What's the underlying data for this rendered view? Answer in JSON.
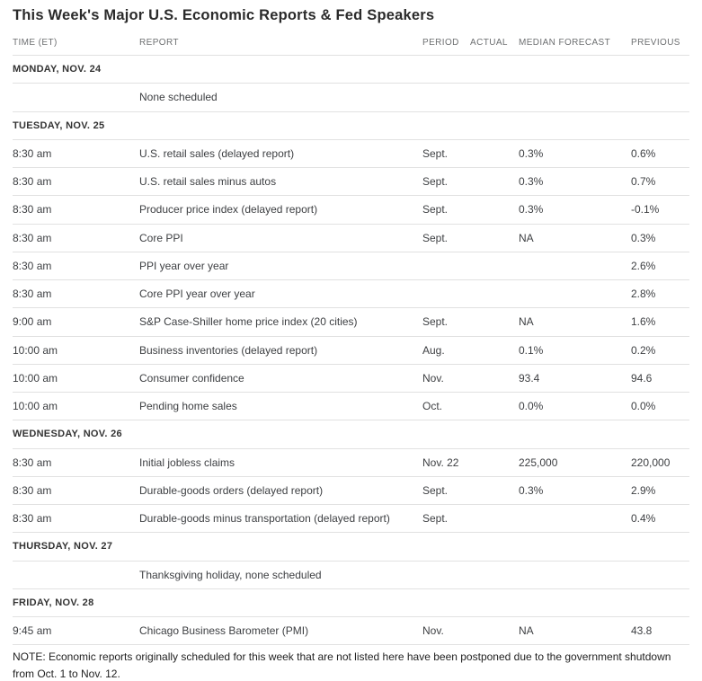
{
  "page": {
    "title": "This Week's Major U.S. Economic Reports & Fed Speakers",
    "note": "NOTE: Economic reports originally scheduled for this week that are not listed here have been postponed due to the government shutdown from Oct. 1 to Nov. 12."
  },
  "colors": {
    "background": "#ffffff",
    "title_text": "#2b2b2b",
    "column_header_text": "#6d6f71",
    "section_header_text": "#333333",
    "body_text": "#3d3f42",
    "divider": "#e1e1e1"
  },
  "table": {
    "columns": [
      "TIME (ET)",
      "REPORT",
      "PERIOD",
      "ACTUAL",
      "MEDIAN FORECAST",
      "PREVIOUS"
    ],
    "rows": [
      {
        "type": "section",
        "label": "MONDAY, NOV. 24"
      },
      {
        "type": "data",
        "cells": [
          "",
          "None scheduled",
          "",
          "",
          "",
          ""
        ]
      },
      {
        "type": "section",
        "label": "TUESDAY, NOV. 25"
      },
      {
        "type": "data",
        "cells": [
          "8:30 am",
          "U.S. retail sales (delayed report)",
          "Sept.",
          "",
          "0.3%",
          "0.6%"
        ]
      },
      {
        "type": "data",
        "cells": [
          "8:30 am",
          "U.S. retail sales minus autos",
          "Sept.",
          "",
          "0.3%",
          "0.7%"
        ]
      },
      {
        "type": "data",
        "cells": [
          "8:30 am",
          "Producer price index (delayed report)",
          "Sept.",
          "",
          "0.3%",
          "-0.1%"
        ]
      },
      {
        "type": "data",
        "cells": [
          "8:30 am",
          "Core PPI",
          "Sept.",
          "",
          "NA",
          "0.3%"
        ]
      },
      {
        "type": "data",
        "cells": [
          "8:30 am",
          "PPI year over year",
          "",
          "",
          "",
          "2.6%"
        ]
      },
      {
        "type": "data",
        "cells": [
          "8:30 am",
          "Core PPI year over year",
          "",
          "",
          "",
          "2.8%"
        ]
      },
      {
        "type": "data",
        "cells": [
          "9:00 am",
          "S&P Case-Shiller home price index (20 cities)",
          "Sept.",
          "",
          "NA",
          "1.6%"
        ]
      },
      {
        "type": "data",
        "cells": [
          "10:00 am",
          "Business inventories (delayed report)",
          "Aug.",
          "",
          "0.1%",
          "0.2%"
        ]
      },
      {
        "type": "data",
        "cells": [
          "10:00 am",
          "Consumer confidence",
          "Nov.",
          "",
          "93.4",
          "94.6"
        ]
      },
      {
        "type": "data",
        "cells": [
          "10:00 am",
          "Pending home sales",
          "Oct.",
          "",
          "0.0%",
          "0.0%"
        ]
      },
      {
        "type": "section",
        "label": "WEDNESDAY, NOV. 26"
      },
      {
        "type": "data",
        "cells": [
          "8:30 am",
          "Initial jobless claims",
          "Nov. 22",
          "",
          "225,000",
          "220,000"
        ]
      },
      {
        "type": "data",
        "cells": [
          "8:30 am",
          "Durable-goods orders (delayed report)",
          "Sept.",
          "",
          "0.3%",
          "2.9%"
        ]
      },
      {
        "type": "data",
        "cells": [
          "8:30 am",
          "Durable-goods minus transportation (delayed report)",
          "Sept.",
          "",
          "",
          "0.4%"
        ]
      },
      {
        "type": "section",
        "label": "THURSDAY, NOV. 27"
      },
      {
        "type": "data",
        "cells": [
          "",
          "Thanksgiving holiday, none scheduled",
          "",
          "",
          "",
          ""
        ]
      },
      {
        "type": "section",
        "label": "FRIDAY, NOV. 28"
      },
      {
        "type": "data",
        "cells": [
          "9:45 am",
          "Chicago Business Barometer (PMI)",
          "Nov.",
          "",
          "NA",
          "43.8"
        ]
      }
    ]
  }
}
